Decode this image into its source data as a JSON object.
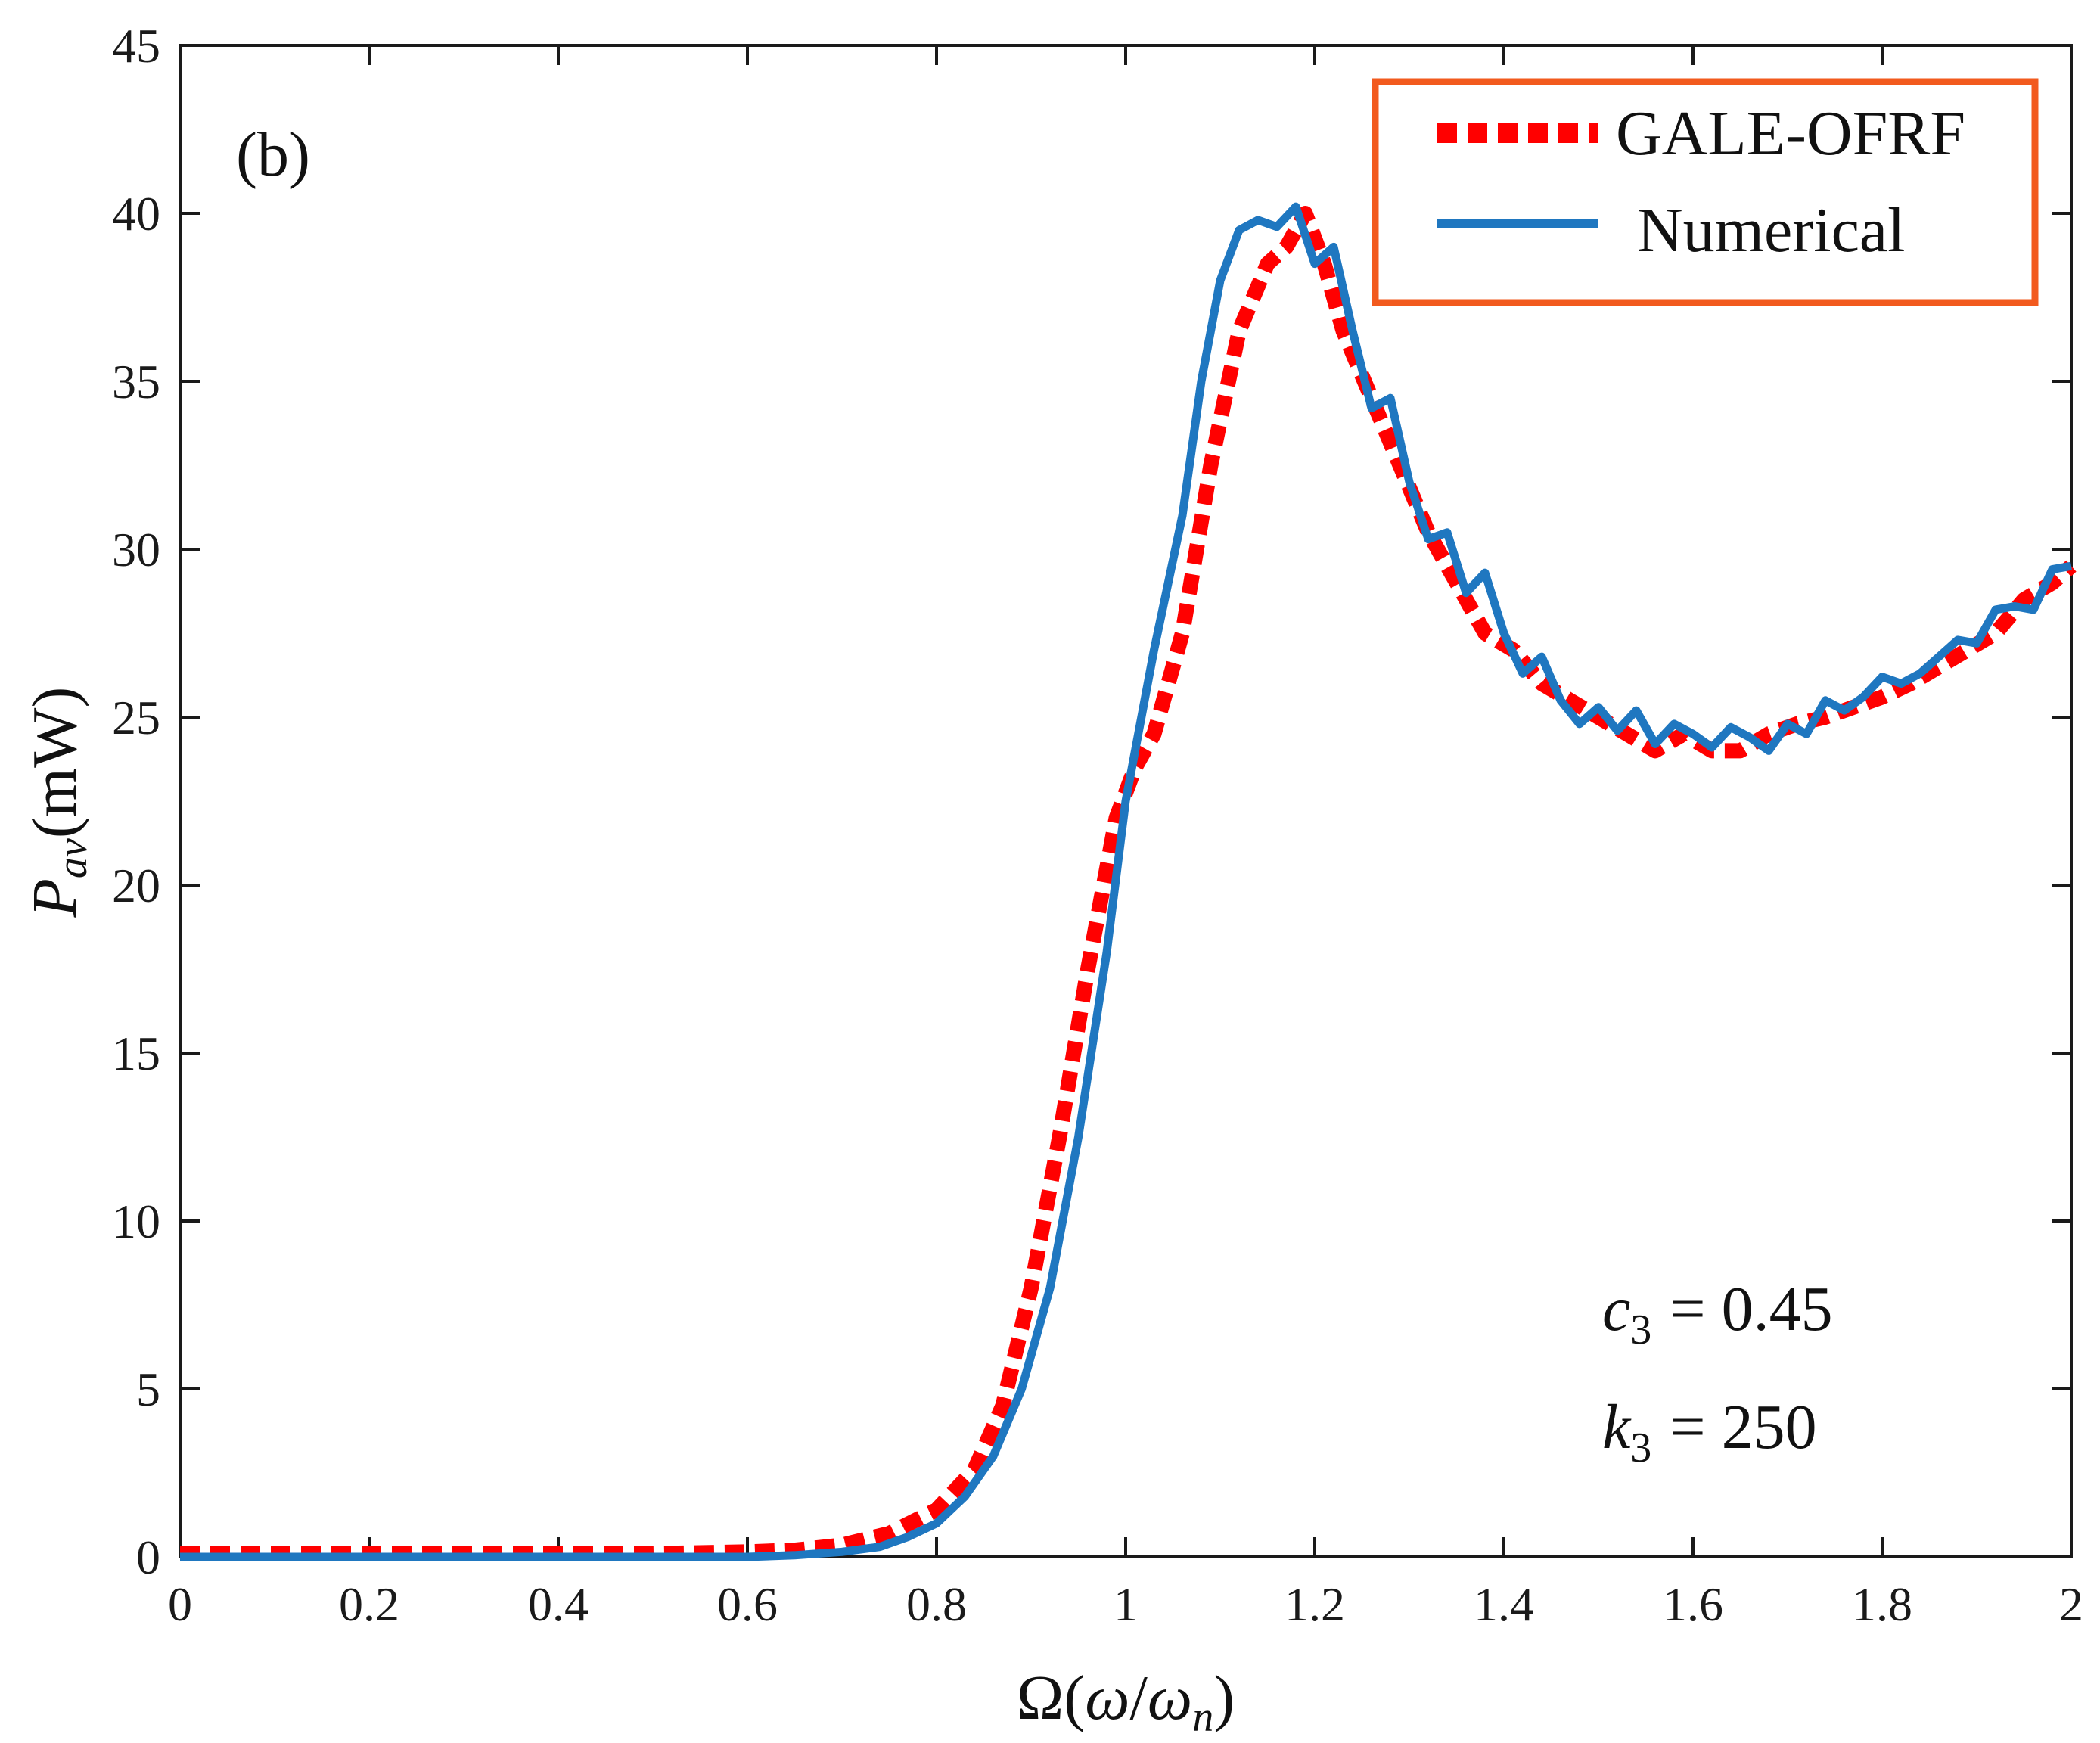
{
  "chart_data": {
    "type": "line",
    "panel_label": "(b)",
    "xlabel": {
      "omega_cap": "Ω",
      "open": "(",
      "omega": "ω",
      "slash": "/",
      "omega_n_base": "ω",
      "omega_n_sub": "n",
      "close": ")"
    },
    "ylabel": {
      "p": "P",
      "sub": "av",
      "unit": "(mW)"
    },
    "xlim": [
      0,
      2
    ],
    "ylim": [
      0,
      45
    ],
    "xticks": [
      "0",
      "0.2",
      "0.4",
      "0.6",
      "0.8",
      "1",
      "1.2",
      "1.4",
      "1.6",
      "1.8",
      "2"
    ],
    "yticks": [
      "0",
      "5",
      "10",
      "15",
      "20",
      "25",
      "30",
      "35",
      "40",
      "45"
    ],
    "legend_position": "top-right",
    "legend_border_color": "#f25a1e",
    "annotations": [
      {
        "var": "c",
        "sub": "3",
        "rest": "= 0.45"
      },
      {
        "var": "k",
        "sub": "3",
        "rest": "= 250"
      }
    ],
    "series": [
      {
        "name": "GALE-OFRF",
        "style": "dotted",
        "color": "#ff0000",
        "points": [
          [
            0.0,
            0.1
          ],
          [
            0.1,
            0.1
          ],
          [
            0.2,
            0.1
          ],
          [
            0.3,
            0.1
          ],
          [
            0.4,
            0.1
          ],
          [
            0.5,
            0.1
          ],
          [
            0.6,
            0.15
          ],
          [
            0.65,
            0.2
          ],
          [
            0.7,
            0.35
          ],
          [
            0.75,
            0.7
          ],
          [
            0.8,
            1.4
          ],
          [
            0.84,
            2.6
          ],
          [
            0.87,
            4.5
          ],
          [
            0.9,
            8.0
          ],
          [
            0.93,
            12.5
          ],
          [
            0.96,
            17.5
          ],
          [
            0.99,
            22.0
          ],
          [
            1.01,
            23.5
          ],
          [
            1.03,
            24.5
          ],
          [
            1.06,
            27.5
          ],
          [
            1.09,
            32.5
          ],
          [
            1.12,
            36.5
          ],
          [
            1.15,
            38.5
          ],
          [
            1.17,
            39.0
          ],
          [
            1.19,
            40.0
          ],
          [
            1.21,
            38.5
          ],
          [
            1.23,
            36.5
          ],
          [
            1.26,
            34.5
          ],
          [
            1.29,
            32.5
          ],
          [
            1.32,
            30.5
          ],
          [
            1.35,
            29.0
          ],
          [
            1.38,
            27.5
          ],
          [
            1.41,
            27.0
          ],
          [
            1.44,
            26.0
          ],
          [
            1.47,
            25.5
          ],
          [
            1.5,
            25.0
          ],
          [
            1.53,
            24.5
          ],
          [
            1.56,
            24.0
          ],
          [
            1.59,
            24.5
          ],
          [
            1.62,
            24.0
          ],
          [
            1.65,
            24.0
          ],
          [
            1.68,
            24.5
          ],
          [
            1.71,
            24.8
          ],
          [
            1.74,
            25.0
          ],
          [
            1.77,
            25.3
          ],
          [
            1.8,
            25.6
          ],
          [
            1.83,
            26.0
          ],
          [
            1.86,
            26.5
          ],
          [
            1.89,
            27.0
          ],
          [
            1.92,
            27.5
          ],
          [
            1.95,
            28.5
          ],
          [
            1.98,
            29.0
          ],
          [
            2.0,
            29.5
          ]
        ]
      },
      {
        "name": "Numerical",
        "style": "solid",
        "color": "#1f77c0",
        "points": [
          [
            0.0,
            0.0
          ],
          [
            0.1,
            0.0
          ],
          [
            0.2,
            0.0
          ],
          [
            0.3,
            0.0
          ],
          [
            0.4,
            0.0
          ],
          [
            0.5,
            0.0
          ],
          [
            0.6,
            0.0
          ],
          [
            0.65,
            0.05
          ],
          [
            0.7,
            0.15
          ],
          [
            0.74,
            0.3
          ],
          [
            0.77,
            0.6
          ],
          [
            0.8,
            1.0
          ],
          [
            0.83,
            1.8
          ],
          [
            0.86,
            3.0
          ],
          [
            0.89,
            5.0
          ],
          [
            0.92,
            8.0
          ],
          [
            0.95,
            12.5
          ],
          [
            0.98,
            18.0
          ],
          [
            1.0,
            22.5
          ],
          [
            1.03,
            27.0
          ],
          [
            1.06,
            31.0
          ],
          [
            1.08,
            35.0
          ],
          [
            1.1,
            38.0
          ],
          [
            1.12,
            39.5
          ],
          [
            1.14,
            39.8
          ],
          [
            1.16,
            39.6
          ],
          [
            1.18,
            40.2
          ],
          [
            1.2,
            38.5
          ],
          [
            1.22,
            39.0
          ],
          [
            1.24,
            36.5
          ],
          [
            1.26,
            34.2
          ],
          [
            1.28,
            34.5
          ],
          [
            1.3,
            32.0
          ],
          [
            1.32,
            30.3
          ],
          [
            1.34,
            30.5
          ],
          [
            1.36,
            28.7
          ],
          [
            1.38,
            29.3
          ],
          [
            1.4,
            27.5
          ],
          [
            1.42,
            26.3
          ],
          [
            1.44,
            26.8
          ],
          [
            1.46,
            25.5
          ],
          [
            1.48,
            24.8
          ],
          [
            1.5,
            25.3
          ],
          [
            1.52,
            24.6
          ],
          [
            1.54,
            25.2
          ],
          [
            1.56,
            24.2
          ],
          [
            1.58,
            24.8
          ],
          [
            1.6,
            24.5
          ],
          [
            1.62,
            24.1
          ],
          [
            1.64,
            24.7
          ],
          [
            1.66,
            24.4
          ],
          [
            1.68,
            24.0
          ],
          [
            1.7,
            24.8
          ],
          [
            1.72,
            24.5
          ],
          [
            1.74,
            25.5
          ],
          [
            1.76,
            25.2
          ],
          [
            1.78,
            25.6
          ],
          [
            1.8,
            26.2
          ],
          [
            1.82,
            26.0
          ],
          [
            1.84,
            26.3
          ],
          [
            1.86,
            26.8
          ],
          [
            1.88,
            27.3
          ],
          [
            1.9,
            27.2
          ],
          [
            1.92,
            28.2
          ],
          [
            1.94,
            28.3
          ],
          [
            1.96,
            28.2
          ],
          [
            1.98,
            29.4
          ],
          [
            2.0,
            29.5
          ]
        ]
      }
    ]
  }
}
